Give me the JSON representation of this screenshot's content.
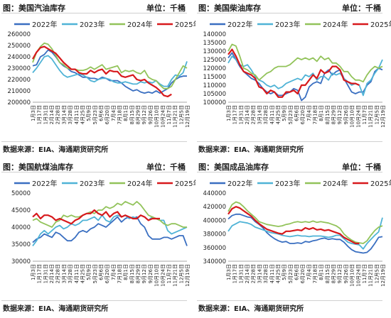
{
  "source_prefix": "数据来源：",
  "chart_data": [
    {
      "type": "line",
      "title": "美国汽油库存",
      "title_prefix": "图：",
      "unit": "单位：千桶",
      "source": "EIA、海通期货研究所",
      "ylim": [
        200000,
        260000
      ],
      "yticks": [
        200000,
        210000,
        220000,
        230000,
        240000,
        250000,
        260000
      ],
      "xtick_labels": [
        "1月3日",
        "1月17日",
        "1月31日",
        "2月14日",
        "2月28日",
        "3月14日",
        "3月28日",
        "4月11日",
        "4月25日",
        "5月9日",
        "5月23日",
        "6月6日",
        "6月20日",
        "7月4日",
        "7月18日",
        "8月1日",
        "8月15日",
        "8月29日",
        "9月12日",
        "9月26日",
        "10月10日",
        "10月24日",
        "11月7日",
        "11月21日",
        "12月5日",
        "12月19日"
      ],
      "legend": "top",
      "series": [
        {
          "name": "2022年",
          "color": "#3a6fc1",
          "values": [
            232000,
            233000,
            240000,
            242000,
            246000,
            244000,
            240000,
            235000,
            232000,
            230000,
            227000,
            226000,
            224000,
            222000,
            222000,
            221000,
            221000,
            220000,
            222000,
            221000,
            219000,
            219000,
            219000,
            217000,
            214000,
            212000,
            210000,
            211000,
            209000,
            208000,
            209000,
            208000,
            210000,
            208000,
            210000,
            212000,
            217000,
            220000,
            222000,
            223000,
            223000
          ]
        },
        {
          "name": "2023年",
          "color": "#4fb3d6",
          "values": [
            226000,
            230000,
            235000,
            240000,
            241000,
            238000,
            233000,
            228000,
            224000,
            222000,
            223000,
            224000,
            225000,
            224000,
            222000,
            219000,
            218000,
            220000,
            221000,
            221000,
            220000,
            218000,
            217000,
            217000,
            218000,
            217000,
            216000,
            216000,
            218000,
            217000,
            218000,
            217000,
            219000,
            216000,
            214000,
            214000,
            220000,
            224000,
            223000,
            226000,
            236000
          ]
        },
        {
          "name": "2024年",
          "color": "#92c35a",
          "values": [
            235000,
            244000,
            249000,
            252000,
            251000,
            247000,
            241000,
            235000,
            233000,
            230000,
            229000,
            229000,
            228000,
            228000,
            229000,
            231000,
            229000,
            231000,
            233000,
            229000,
            230000,
            231000,
            232000,
            226000,
            228000,
            227000,
            228000,
            226000,
            225000,
            228000,
            222000,
            220000,
            219000,
            215000,
            212000,
            212000,
            214000,
            220000,
            226000,
            232000,
            230000
          ]
        },
        {
          "name": "2025年",
          "color": "#d7191c",
          "values": [
            238000,
            244000,
            248000,
            249000,
            247000,
            245000,
            243000,
            239000,
            235000,
            232000,
            229000,
            229000,
            226000,
            225000,
            225000,
            228000,
            226000,
            228000,
            229000,
            225000,
            228000,
            227000,
            227000,
            223000,
            222000,
            223000,
            224000,
            220000,
            219000,
            220000,
            217000,
            215000,
            213000,
            210000,
            206000,
            205000,
            207000,
            null,
            null,
            null,
            null
          ]
        }
      ]
    },
    {
      "type": "line",
      "title": "美国柴油库存",
      "title_prefix": "图：",
      "unit": "单位：千桶",
      "source": "EIA、海通期货研究所",
      "ylim": [
        100000,
        140000
      ],
      "yticks": [
        100000,
        105000,
        110000,
        115000,
        120000,
        125000,
        130000,
        135000,
        140000
      ],
      "xtick_labels": [
        "1月3日",
        "1月17日",
        "1月31日",
        "2月14日",
        "2月28日",
        "3月14日",
        "3月28日",
        "4月11日",
        "4月25日",
        "5月9日",
        "5月23日",
        "6月6日",
        "6月20日",
        "7月4日",
        "7月18日",
        "8月1日",
        "8月15日",
        "8月29日",
        "9月12日",
        "9月26日",
        "10月10日",
        "10月24日",
        "11月7日",
        "11月21日",
        "12月5日",
        "12月19日"
      ],
      "legend": "top",
      "series": [
        {
          "name": "2022年",
          "color": "#3a6fc1",
          "values": [
            126000,
            129000,
            125000,
            121000,
            118000,
            116000,
            114000,
            113000,
            111000,
            108000,
            106000,
            105000,
            106000,
            104000,
            104000,
            105000,
            106000,
            108000,
            107000,
            101000,
            103000,
            109000,
            111000,
            112000,
            111000,
            117000,
            119000,
            116000,
            118000,
            119000,
            114000,
            110000,
            106000,
            105000,
            106000,
            106000,
            110000,
            112000,
            118000,
            120000,
            119000
          ]
        },
        {
          "name": "2023年",
          "color": "#4fb3d6",
          "values": [
            123000,
            127000,
            125000,
            122000,
            121000,
            122000,
            119000,
            115000,
            113000,
            112000,
            110000,
            109000,
            110000,
            108000,
            109000,
            111000,
            112000,
            113000,
            114000,
            113000,
            116000,
            115000,
            117000,
            113000,
            115000,
            115000,
            113000,
            117000,
            116000,
            117000,
            114000,
            112000,
            110000,
            111000,
            110000,
            104000,
            111000,
            113000,
            117000,
            120000,
            125000
          ]
        },
        {
          "name": "2024年",
          "color": "#92c35a",
          "values": [
            130000,
            134000,
            133000,
            127000,
            120000,
            119000,
            117000,
            116000,
            113000,
            115000,
            117000,
            118000,
            120000,
            121000,
            121000,
            121000,
            122000,
            124000,
            126000,
            125000,
            126000,
            125000,
            126000,
            124000,
            127000,
            125000,
            126000,
            123000,
            123000,
            121000,
            118000,
            118000,
            115000,
            113000,
            113000,
            112000,
            116000,
            119000,
            121000,
            120000,
            121000
          ]
        },
        {
          "name": "2025年",
          "color": "#d7191c",
          "values": [
            128000,
            131000,
            127000,
            122000,
            118000,
            117000,
            116000,
            114000,
            109000,
            108000,
            105000,
            107000,
            106000,
            103000,
            103000,
            106000,
            106000,
            107000,
            105000,
            110000,
            110000,
            113000,
            116000,
            114000,
            119000,
            117000,
            118000,
            121000,
            121000,
            119000,
            113000,
            112000,
            111000,
            111000,
            110000,
            null,
            null,
            null,
            null,
            null,
            null
          ]
        }
      ]
    },
    {
      "type": "line",
      "title": "美国航煤油库存",
      "title_prefix": "图：",
      "unit": "单位：千桶",
      "source": "EIA、海通期货研究所",
      "ylim": [
        30000,
        50000
      ],
      "yticks": [
        30000,
        35000,
        40000,
        45000,
        50000
      ],
      "xtick_labels": [
        "1月3日",
        "1月17日",
        "1月31日",
        "2月14日",
        "2月28日",
        "3月14日",
        "3月28日",
        "4月11日",
        "4月25日",
        "5月9日",
        "5月23日",
        "6月6日",
        "6月20日",
        "7月4日",
        "7月18日",
        "8月1日",
        "8月15日",
        "8月29日",
        "9月12日",
        "9月26日",
        "10月10日",
        "10月24日",
        "11月7日",
        "11月21日",
        "12月5日",
        "12月19日"
      ],
      "legend": "top",
      "series": [
        {
          "name": "2022年",
          "color": "#3a6fc1",
          "values": [
            35500,
            36500,
            37000,
            38000,
            37500,
            37000,
            38500,
            38000,
            37000,
            36000,
            36000,
            37000,
            38500,
            39000,
            38500,
            39500,
            40000,
            41000,
            40500,
            40000,
            41000,
            42000,
            43000,
            41500,
            42500,
            43000,
            42500,
            43000,
            41000,
            40000,
            37500,
            36500,
            36500,
            36500,
            37000,
            37000,
            36500,
            37000,
            37500,
            37500,
            34500
          ]
        },
        {
          "name": "2023年",
          "color": "#4fb3d6",
          "values": [
            34500,
            36000,
            38000,
            39000,
            38000,
            39000,
            40000,
            40500,
            39500,
            40000,
            41000,
            40500,
            41000,
            42000,
            42000,
            42500,
            43000,
            42000,
            43500,
            42000,
            41500,
            43000,
            43500,
            43000,
            43500,
            42500,
            43000,
            42500,
            43500,
            43000,
            42000,
            43000,
            42500,
            42000,
            42000,
            39000,
            38000,
            38500,
            39000,
            39500,
            40000
          ]
        },
        {
          "name": "2024年",
          "color": "#92c35a",
          "values": [
            42000,
            42500,
            41500,
            41000,
            40500,
            40000,
            41500,
            42000,
            43500,
            43000,
            43500,
            43000,
            43000,
            43500,
            44000,
            44500,
            44000,
            45000,
            45000,
            46000,
            45500,
            46000,
            47000,
            46500,
            47500,
            47000,
            46500,
            47500,
            46500,
            45000,
            43500,
            43000,
            42500,
            42000,
            41000,
            40500,
            41000,
            41000,
            40500,
            40000,
            40000
          ]
        },
        {
          "name": "2025年",
          "color": "#d7191c",
          "values": [
            43000,
            44000,
            42500,
            43500,
            43500,
            43000,
            42000,
            42500,
            42000,
            41500,
            41000,
            42000,
            42500,
            43500,
            44000,
            44000,
            45000,
            44000,
            43500,
            44500,
            43000,
            44000,
            44500,
            43000,
            43500,
            43000,
            42500,
            42500,
            43500,
            43000,
            42000,
            42500,
            42500,
            42500,
            null,
            null,
            null,
            null,
            null,
            null,
            null
          ]
        }
      ]
    },
    {
      "type": "line",
      "title": "美国成品油库存",
      "title_prefix": "图：",
      "unit": "单位：千桶",
      "source": "EIA、海通期货研究所",
      "ylim": [
        340000,
        440000
      ],
      "yticks": [
        340000,
        360000,
        380000,
        400000,
        420000,
        440000
      ],
      "xtick_labels": [
        "1月3日",
        "1月17日",
        "1月31日",
        "2月14日",
        "2月28日",
        "3月14日",
        "3月28日",
        "4月11日",
        "4月25日",
        "5月9日",
        "5月23日",
        "6月6日",
        "6月20日",
        "7月4日",
        "7月18日",
        "8月1日",
        "8月15日",
        "8月29日",
        "9月12日",
        "9月26日",
        "10月10日",
        "10月24日",
        "11月7日",
        "11月21日",
        "12月5日",
        "12月19日"
      ],
      "legend": "top",
      "series": [
        {
          "name": "2022年",
          "color": "#3a6fc1",
          "values": [
            402000,
            407000,
            409000,
            409000,
            407000,
            405000,
            404000,
            398000,
            394000,
            389000,
            382000,
            377000,
            373000,
            370000,
            368000,
            369000,
            366000,
            366000,
            367000,
            366000,
            369000,
            368000,
            370000,
            371000,
            373000,
            374000,
            372000,
            373000,
            372000,
            372000,
            368000,
            362000,
            357000,
            354000,
            353000,
            352000,
            353000,
            358000,
            366000,
            375000,
            376000
          ]
        },
        {
          "name": "2023年",
          "color": "#4fb3d6",
          "values": [
            384000,
            392000,
            395000,
            398000,
            397000,
            396000,
            394000,
            390000,
            388000,
            386000,
            384000,
            382000,
            381000,
            380000,
            378000,
            377000,
            376000,
            377000,
            378000,
            377000,
            377000,
            376000,
            377000,
            377000,
            377000,
            376000,
            375000,
            376000,
            378000,
            378000,
            373000,
            368000,
            366000,
            365000,
            364000,
            358000,
            366000,
            372000,
            378000,
            383000,
            404000
          ]
        },
        {
          "name": "2024年",
          "color": "#92c35a",
          "values": [
            413000,
            423000,
            427000,
            425000,
            420000,
            414000,
            409000,
            404000,
            398000,
            396000,
            394000,
            393000,
            392000,
            391000,
            392000,
            394000,
            395000,
            397000,
            398000,
            397000,
            398000,
            397000,
            399000,
            397000,
            398000,
            397000,
            396000,
            394000,
            392000,
            388000,
            380000,
            375000,
            371000,
            368000,
            367000,
            366000,
            370000,
            378000,
            385000,
            390000,
            392000
          ]
        },
        {
          "name": "2025年",
          "color": "#d7191c",
          "values": [
            409000,
            417000,
            420000,
            418000,
            414000,
            410000,
            406000,
            400000,
            395000,
            391000,
            387000,
            385000,
            383000,
            381000,
            380000,
            384000,
            384000,
            385000,
            386000,
            385000,
            389000,
            387000,
            389000,
            386000,
            387000,
            385000,
            386000,
            384000,
            382000,
            380000,
            375000,
            372000,
            369000,
            366000,
            366000,
            null,
            null,
            null,
            null,
            null,
            null
          ]
        }
      ]
    }
  ]
}
